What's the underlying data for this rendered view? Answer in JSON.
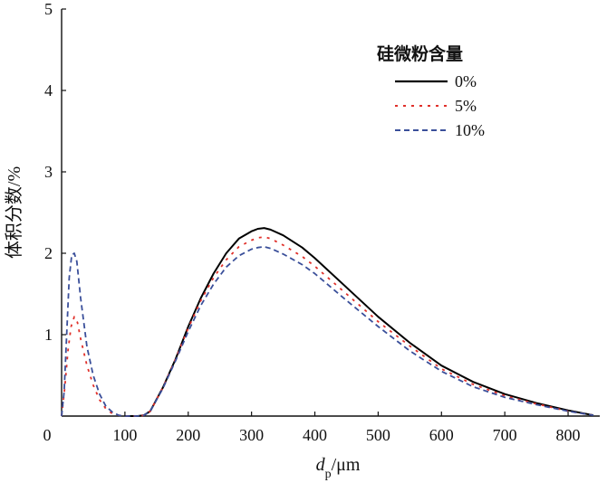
{
  "chart_data": {
    "type": "line",
    "xlabel": "d",
    "xlabel_sub": "p",
    "xlabel_unit": "/μm",
    "ylabel": "体积分数/%",
    "xlim": [
      0,
      850
    ],
    "ylim": [
      0,
      5
    ],
    "x_ticks": [
      0,
      100,
      200,
      300,
      400,
      500,
      600,
      700,
      800
    ],
    "y_ticks": [
      1,
      2,
      3,
      4,
      5
    ],
    "grid": false,
    "legend": {
      "title": "硅微粉含量",
      "placement": "top-right"
    },
    "series": [
      {
        "name": "0%",
        "color": "#000000",
        "dash": "solid",
        "points": [
          [
            100,
            0
          ],
          [
            120,
            0
          ],
          [
            130,
            0.01
          ],
          [
            140,
            0.06
          ],
          [
            160,
            0.35
          ],
          [
            180,
            0.7
          ],
          [
            200,
            1.1
          ],
          [
            220,
            1.45
          ],
          [
            240,
            1.75
          ],
          [
            260,
            2.0
          ],
          [
            280,
            2.18
          ],
          [
            300,
            2.27
          ],
          [
            310,
            2.3
          ],
          [
            320,
            2.31
          ],
          [
            330,
            2.29
          ],
          [
            350,
            2.22
          ],
          [
            380,
            2.07
          ],
          [
            400,
            1.94
          ],
          [
            450,
            1.58
          ],
          [
            500,
            1.22
          ],
          [
            550,
            0.9
          ],
          [
            600,
            0.62
          ],
          [
            650,
            0.42
          ],
          [
            700,
            0.27
          ],
          [
            750,
            0.16
          ],
          [
            800,
            0.07
          ],
          [
            840,
            0.01
          ]
        ]
      },
      {
        "name": "5%",
        "color": "#e0302a",
        "dash": "dotted",
        "points": [
          [
            0,
            0
          ],
          [
            5,
            0.35
          ],
          [
            10,
            0.8
          ],
          [
            15,
            1.1
          ],
          [
            20,
            1.22
          ],
          [
            25,
            1.15
          ],
          [
            30,
            0.95
          ],
          [
            40,
            0.62
          ],
          [
            50,
            0.38
          ],
          [
            60,
            0.2
          ],
          [
            70,
            0.09
          ],
          [
            80,
            0.03
          ],
          [
            90,
            0.01
          ],
          [
            100,
            0
          ],
          [
            120,
            0
          ],
          [
            130,
            0.01
          ],
          [
            140,
            0.06
          ],
          [
            160,
            0.35
          ],
          [
            180,
            0.7
          ],
          [
            200,
            1.08
          ],
          [
            220,
            1.42
          ],
          [
            240,
            1.7
          ],
          [
            260,
            1.92
          ],
          [
            280,
            2.08
          ],
          [
            300,
            2.16
          ],
          [
            310,
            2.19
          ],
          [
            320,
            2.2
          ],
          [
            330,
            2.18
          ],
          [
            350,
            2.1
          ],
          [
            380,
            1.96
          ],
          [
            400,
            1.84
          ],
          [
            450,
            1.5
          ],
          [
            500,
            1.16
          ],
          [
            550,
            0.86
          ],
          [
            600,
            0.58
          ],
          [
            650,
            0.39
          ],
          [
            700,
            0.25
          ],
          [
            750,
            0.15
          ],
          [
            800,
            0.06
          ],
          [
            840,
            0.01
          ]
        ]
      },
      {
        "name": "10%",
        "color": "#3a4f9a",
        "dash": "dashed",
        "points": [
          [
            0,
            0
          ],
          [
            4,
            0.3
          ],
          [
            8,
            1.0
          ],
          [
            12,
            1.7
          ],
          [
            16,
            1.98
          ],
          [
            20,
            2.0
          ],
          [
            24,
            1.9
          ],
          [
            30,
            1.45
          ],
          [
            40,
            0.85
          ],
          [
            50,
            0.5
          ],
          [
            60,
            0.27
          ],
          [
            70,
            0.12
          ],
          [
            80,
            0.05
          ],
          [
            90,
            0.01
          ],
          [
            100,
            0
          ],
          [
            120,
            0
          ],
          [
            130,
            0.01
          ],
          [
            140,
            0.06
          ],
          [
            160,
            0.34
          ],
          [
            180,
            0.68
          ],
          [
            200,
            1.04
          ],
          [
            220,
            1.36
          ],
          [
            240,
            1.62
          ],
          [
            260,
            1.83
          ],
          [
            280,
            1.97
          ],
          [
            300,
            2.05
          ],
          [
            310,
            2.07
          ],
          [
            320,
            2.08
          ],
          [
            330,
            2.06
          ],
          [
            350,
            1.99
          ],
          [
            380,
            1.86
          ],
          [
            400,
            1.75
          ],
          [
            450,
            1.42
          ],
          [
            500,
            1.1
          ],
          [
            550,
            0.8
          ],
          [
            600,
            0.55
          ],
          [
            650,
            0.36
          ],
          [
            700,
            0.23
          ],
          [
            750,
            0.14
          ],
          [
            800,
            0.06
          ],
          [
            840,
            0.01
          ]
        ]
      }
    ]
  }
}
